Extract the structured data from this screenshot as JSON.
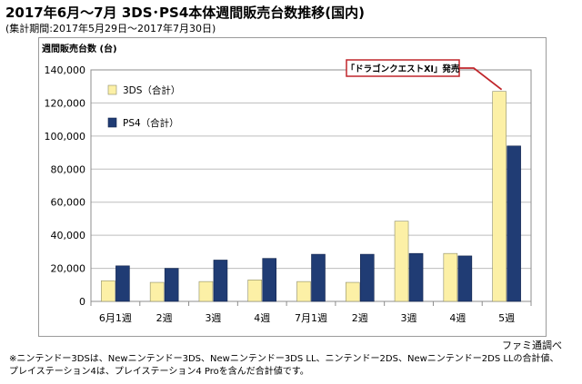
{
  "header": {
    "title": "2017年6月～7月 3DS･PS4本体週間販売台数推移(国内)",
    "period": "(集計期間:2017年5月29日～2017年7月30日)"
  },
  "chart_data": {
    "type": "bar",
    "ylabel": "週間販売台数 (台)",
    "ylim": [
      0,
      140000
    ],
    "yticks": [
      0,
      20000,
      40000,
      60000,
      80000,
      100000,
      120000,
      140000
    ],
    "ytick_labels": [
      "0",
      "20,000",
      "40,000",
      "60,000",
      "80,000",
      "100,000",
      "120,000",
      "140,000"
    ],
    "categories": [
      "6月1週",
      "2週",
      "3週",
      "4週",
      "7月1週",
      "2週",
      "3週",
      "4週",
      "5週"
    ],
    "series": [
      {
        "name": "3DS（合計）",
        "color": "#fcf0a6",
        "values": [
          12500,
          11500,
          12000,
          13000,
          12000,
          11500,
          48500,
          29000,
          127000
        ]
      },
      {
        "name": "PS4（合計）",
        "color": "#203c74",
        "values": [
          21500,
          20000,
          25000,
          26000,
          28500,
          28500,
          29000,
          27500,
          94000
        ]
      }
    ],
    "grid": true,
    "legend": "top-left",
    "annotation": {
      "text": "「ドラゴンクエストXI」発売",
      "target_category": 8,
      "color": "#c0262b"
    }
  },
  "footer": {
    "source": "ファミ通調べ",
    "note_line1": "※ニンテンドー3DSは、Newニンテンドー3DS、Newニンテンドー3DS LL、ニンテンドー2DS、Newニンテンドー2DS LLの合計値、",
    "note_line2": "プレイステーション4は、プレイステーション4 Proを含んだ合計値です。"
  }
}
